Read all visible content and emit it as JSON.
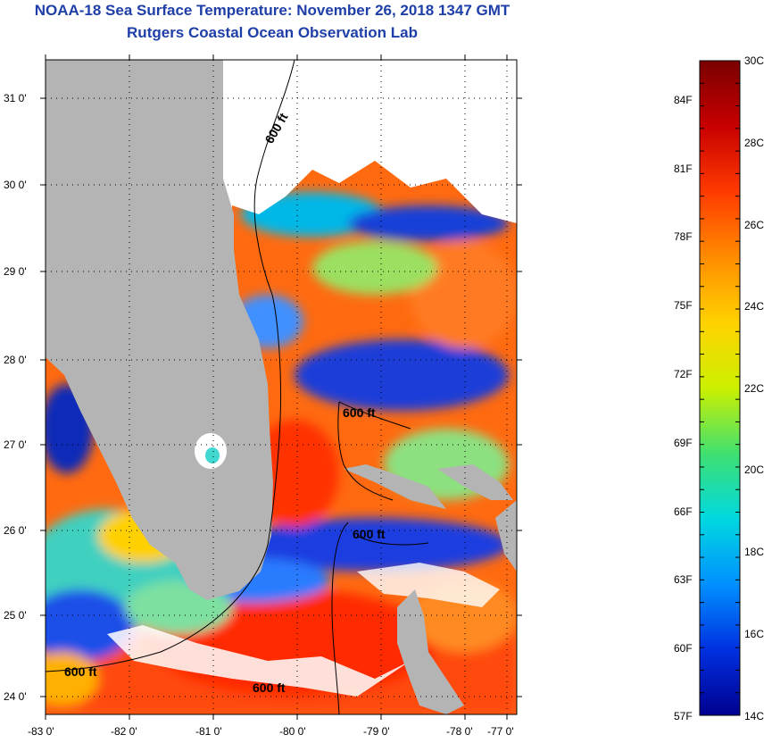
{
  "header": {
    "title": "NOAA-18 Sea Surface Temperature:  November 26, 2018 1347 GMT",
    "subtitle": "Rutgers Coastal Ocean Observation Lab"
  },
  "map": {
    "lat_labels": [
      "31 0'",
      "30 0'",
      "29 0'",
      "28 0'",
      "27 0'",
      "26 0'",
      "25 0'",
      "24 0'"
    ],
    "lon_labels": [
      "-83 0'",
      "-82 0'",
      "-81 0'",
      "-80 0'",
      "-79 0'",
      "-78 0'",
      "-77 0'"
    ],
    "contour_labels": [
      "600 ft",
      "600 ft",
      "600 ft",
      "600 ft",
      "600 ft"
    ],
    "colors": {
      "land": "#b4b4b4",
      "cloud": "#ffffff",
      "frame": "#000000"
    }
  },
  "colorbar": {
    "fahrenheit": [
      "84F",
      "81F",
      "78F",
      "75F",
      "72F",
      "69F",
      "66F",
      "63F",
      "60F",
      "57F"
    ],
    "celsius": [
      "30C",
      "28C",
      "26C",
      "24C",
      "22C",
      "20C",
      "18C",
      "16C",
      "14C"
    ],
    "stops": [
      "#7a0000",
      "#c80000",
      "#ff3a00",
      "#ff8c00",
      "#ffd200",
      "#ccf000",
      "#40e070",
      "#00d8e0",
      "#0090ff",
      "#0030e0",
      "#000090"
    ]
  }
}
